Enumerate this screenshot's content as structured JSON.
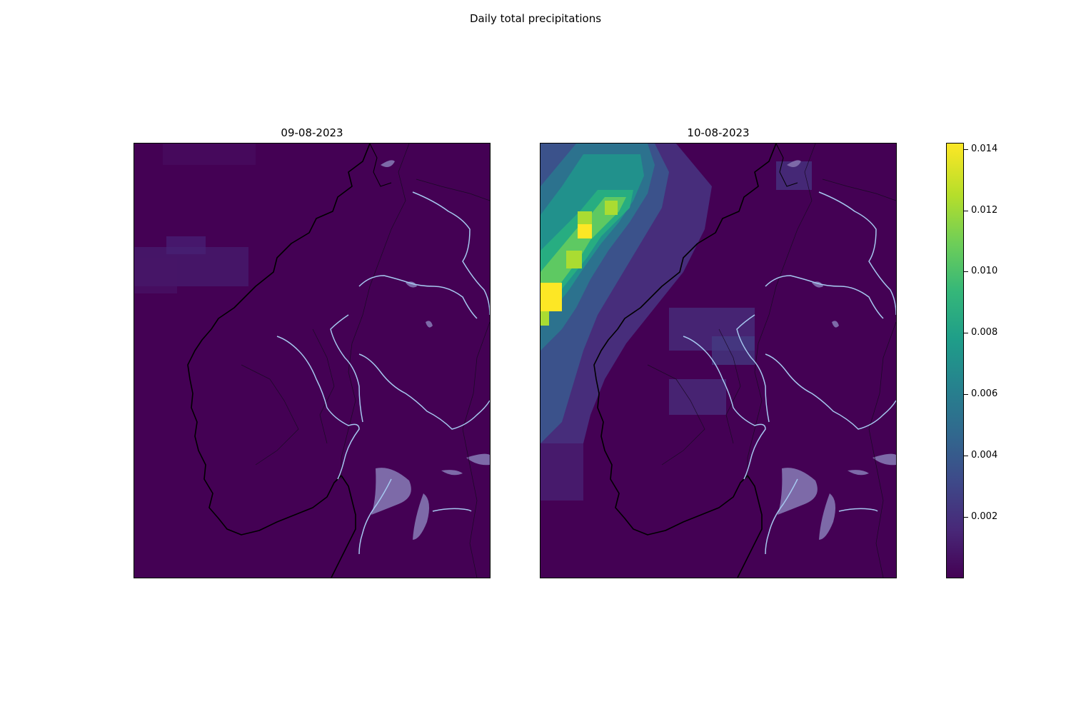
{
  "figure": {
    "suptitle": "Daily total precipitations"
  },
  "panels": [
    {
      "title": "09-08-2023"
    },
    {
      "title": "10-08-2023"
    }
  ],
  "colorbar": {
    "ticks": [
      "0.014",
      "0.012",
      "0.010",
      "0.008",
      "0.006",
      "0.004",
      "0.002"
    ],
    "colormap": "viridis",
    "vmax": 0.0142,
    "vmin": 0.0
  },
  "colors": {
    "background": "#440154",
    "coastline": "#000000",
    "rivers": "#a6c8f0",
    "lakes": "#8a7fb4"
  }
}
